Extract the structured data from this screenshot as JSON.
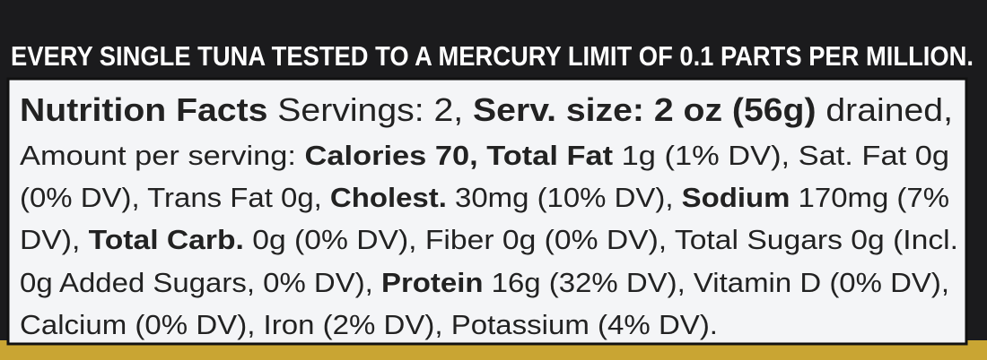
{
  "banner": "EVERY SINGLE TUNA TESTED TO A MERCURY LIMIT OF 0.1 PARTS PER MILLION.",
  "nutrition": {
    "lines": [
      [
        {
          "text": "Nutrition Facts",
          "bold": true
        },
        {
          "text": " Servings: 2, ",
          "bold": false
        },
        {
          "text": "Serv. size: 2 oz (56g)",
          "bold": true
        },
        {
          "text": " drained,",
          "bold": false
        }
      ],
      [
        {
          "text": "Amount per serving: ",
          "bold": false
        },
        {
          "text": "Calories 70, Total Fat",
          "bold": true
        },
        {
          "text": " 1g (1% DV), Sat. Fat 0g",
          "bold": false
        }
      ],
      [
        {
          "text": "(0% DV), Trans Fat 0g, ",
          "bold": false
        },
        {
          "text": "Cholest.",
          "bold": true
        },
        {
          "text": " 30mg (10% DV), ",
          "bold": false
        },
        {
          "text": "Sodium",
          "bold": true
        },
        {
          "text": " 170mg (7%",
          "bold": false
        }
      ],
      [
        {
          "text": "DV), ",
          "bold": false
        },
        {
          "text": "Total Carb.",
          "bold": true
        },
        {
          "text": " 0g (0% DV), Fiber 0g (0% DV), Total Sugars 0g (Incl.",
          "bold": false
        }
      ],
      [
        {
          "text": "0g Added Sugars, 0% DV), ",
          "bold": false
        },
        {
          "text": "Protein",
          "bold": true
        },
        {
          "text": " 16g (32% DV), Vitamin D (0% DV),",
          "bold": false
        }
      ],
      [
        {
          "text": "Calcium (0% DV), Iron (2% DV), Potassium (4% DV).",
          "bold": false
        }
      ]
    ]
  }
}
